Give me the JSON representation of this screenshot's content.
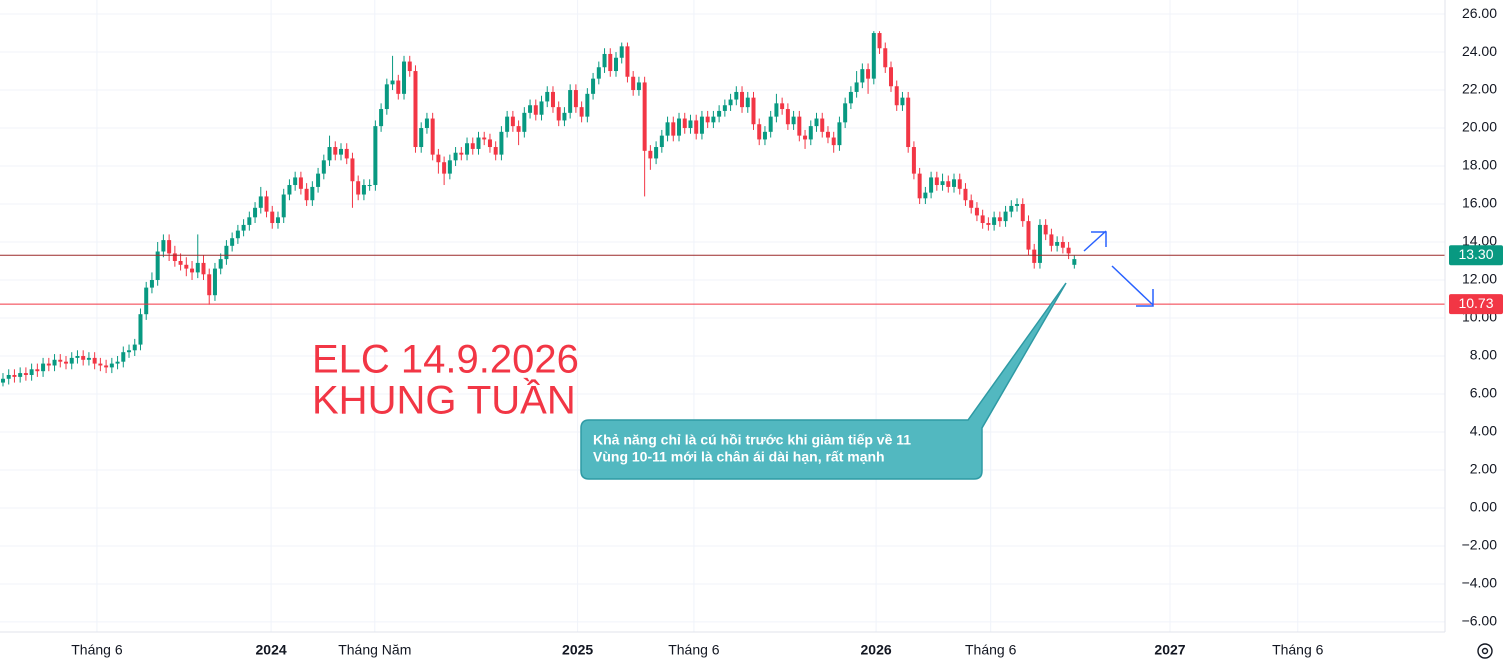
{
  "chart_data": {
    "type": "candlestick",
    "up_color": "#089981",
    "down_color": "#f23645",
    "candles": [
      [
        6.6,
        7.1,
        6.4,
        6.8
      ],
      [
        6.8,
        7.3,
        6.5,
        7.0
      ],
      [
        7.0,
        7.3,
        6.6,
        6.9
      ],
      [
        6.9,
        7.4,
        6.6,
        7.1
      ],
      [
        7.1,
        7.4,
        6.7,
        7.0
      ],
      [
        7.0,
        7.6,
        6.7,
        7.3
      ],
      [
        7.3,
        7.6,
        6.9,
        7.2
      ],
      [
        7.2,
        7.9,
        6.9,
        7.6
      ],
      [
        7.6,
        7.9,
        7.2,
        7.5
      ],
      [
        7.5,
        8.1,
        7.2,
        7.8
      ],
      [
        7.8,
        8.1,
        7.4,
        7.7
      ],
      [
        7.7,
        8.0,
        7.3,
        7.6
      ],
      [
        7.6,
        8.2,
        7.3,
        7.9
      ],
      [
        7.9,
        8.3,
        7.6,
        8.0
      ],
      [
        8.0,
        8.3,
        7.5,
        7.8
      ],
      [
        7.8,
        8.2,
        7.5,
        7.9
      ],
      [
        7.9,
        8.2,
        7.3,
        7.6
      ],
      [
        7.6,
        7.9,
        7.2,
        7.5
      ],
      [
        7.5,
        7.8,
        7.1,
        7.4
      ],
      [
        7.4,
        7.9,
        7.1,
        7.6
      ],
      [
        7.6,
        8.0,
        7.3,
        7.7
      ],
      [
        7.7,
        8.5,
        7.4,
        8.2
      ],
      [
        8.2,
        8.6,
        7.9,
        8.3
      ],
      [
        8.3,
        8.9,
        8.0,
        8.6
      ],
      [
        8.6,
        10.5,
        8.3,
        10.2
      ],
      [
        10.2,
        11.9,
        9.9,
        11.6
      ],
      [
        11.6,
        12.4,
        11.3,
        12.0
      ],
      [
        12.0,
        14.0,
        11.7,
        13.5
      ],
      [
        13.5,
        14.4,
        13.2,
        14.1
      ],
      [
        14.1,
        14.4,
        13.0,
        13.4
      ],
      [
        13.4,
        13.8,
        12.7,
        13.0
      ],
      [
        13.0,
        13.4,
        12.5,
        12.8
      ],
      [
        12.8,
        13.2,
        12.2,
        12.6
      ],
      [
        12.6,
        13.0,
        12.0,
        12.4
      ],
      [
        12.4,
        14.4,
        12.1,
        12.9
      ],
      [
        12.9,
        13.3,
        12.0,
        12.3
      ],
      [
        12.3,
        12.6,
        10.7,
        11.2
      ],
      [
        11.2,
        12.9,
        10.9,
        12.6
      ],
      [
        12.6,
        13.4,
        12.3,
        13.1
      ],
      [
        13.1,
        14.1,
        12.8,
        13.8
      ],
      [
        13.8,
        14.5,
        13.5,
        14.2
      ],
      [
        14.2,
        14.9,
        13.9,
        14.6
      ],
      [
        14.6,
        15.2,
        14.3,
        14.9
      ],
      [
        14.9,
        15.6,
        14.6,
        15.3
      ],
      [
        15.3,
        16.1,
        15.0,
        15.8
      ],
      [
        15.8,
        16.9,
        15.5,
        16.4
      ],
      [
        16.4,
        16.7,
        15.3,
        15.6
      ],
      [
        15.6,
        15.9,
        14.7,
        15.0
      ],
      [
        15.0,
        15.6,
        14.7,
        15.3
      ],
      [
        15.3,
        16.8,
        15.0,
        16.5
      ],
      [
        16.5,
        17.3,
        16.2,
        17.0
      ],
      [
        17.0,
        17.7,
        16.7,
        17.4
      ],
      [
        17.4,
        17.7,
        16.5,
        16.8
      ],
      [
        16.8,
        17.1,
        15.9,
        16.2
      ],
      [
        16.2,
        17.2,
        15.9,
        16.9
      ],
      [
        16.9,
        17.9,
        16.6,
        17.6
      ],
      [
        17.6,
        18.6,
        17.3,
        18.3
      ],
      [
        18.3,
        19.6,
        18.0,
        19.0
      ],
      [
        19.0,
        19.3,
        18.3,
        18.6
      ],
      [
        18.6,
        19.2,
        18.3,
        18.9
      ],
      [
        18.9,
        19.2,
        18.1,
        18.4
      ],
      [
        18.4,
        18.7,
        15.8,
        17.2
      ],
      [
        17.2,
        17.5,
        16.2,
        16.5
      ],
      [
        16.5,
        17.3,
        16.2,
        17.0
      ],
      [
        17.0,
        17.3,
        16.7,
        17.0
      ],
      [
        17.0,
        20.4,
        16.7,
        20.1
      ],
      [
        20.1,
        21.3,
        19.8,
        21.0
      ],
      [
        21.0,
        22.6,
        20.7,
        22.3
      ],
      [
        22.3,
        23.8,
        22.0,
        22.5
      ],
      [
        22.5,
        22.8,
        21.5,
        21.8
      ],
      [
        21.8,
        23.8,
        21.5,
        23.5
      ],
      [
        23.5,
        23.8,
        22.7,
        23.0
      ],
      [
        23.0,
        23.3,
        18.7,
        19.0
      ],
      [
        19.0,
        20.3,
        18.7,
        20.0
      ],
      [
        20.0,
        20.8,
        19.7,
        20.5
      ],
      [
        20.5,
        20.8,
        18.3,
        18.6
      ],
      [
        18.6,
        18.9,
        17.6,
        18.2
      ],
      [
        18.2,
        18.5,
        17.0,
        17.6
      ],
      [
        17.6,
        18.6,
        17.3,
        18.3
      ],
      [
        18.3,
        19.0,
        18.0,
        18.7
      ],
      [
        18.7,
        19.0,
        18.3,
        18.6
      ],
      [
        18.6,
        19.5,
        18.3,
        19.2
      ],
      [
        19.2,
        19.5,
        18.6,
        18.9
      ],
      [
        18.9,
        19.8,
        18.6,
        19.5
      ],
      [
        19.5,
        19.8,
        19.1,
        19.4
      ],
      [
        19.4,
        19.7,
        18.7,
        19.0
      ],
      [
        19.0,
        19.3,
        18.3,
        18.6
      ],
      [
        18.6,
        20.1,
        18.3,
        19.8
      ],
      [
        19.8,
        20.9,
        19.5,
        20.6
      ],
      [
        20.6,
        20.9,
        19.8,
        20.1
      ],
      [
        20.1,
        20.4,
        19.1,
        19.8
      ],
      [
        19.8,
        21.1,
        19.5,
        20.8
      ],
      [
        20.8,
        21.5,
        20.5,
        21.2
      ],
      [
        21.2,
        21.5,
        20.4,
        20.7
      ],
      [
        20.7,
        21.7,
        20.4,
        21.4
      ],
      [
        21.4,
        22.2,
        21.1,
        21.9
      ],
      [
        21.9,
        22.2,
        20.8,
        21.1
      ],
      [
        21.1,
        21.4,
        20.1,
        20.4
      ],
      [
        20.4,
        21.1,
        20.1,
        20.8
      ],
      [
        20.8,
        22.3,
        20.5,
        22.0
      ],
      [
        22.0,
        22.3,
        20.8,
        21.1
      ],
      [
        21.1,
        21.4,
        20.3,
        20.6
      ],
      [
        20.6,
        22.1,
        20.3,
        21.8
      ],
      [
        21.8,
        22.9,
        21.5,
        22.6
      ],
      [
        22.6,
        23.5,
        22.3,
        23.2
      ],
      [
        23.2,
        24.2,
        22.9,
        23.9
      ],
      [
        23.9,
        24.2,
        22.7,
        23.0
      ],
      [
        23.0,
        24.0,
        22.7,
        23.7
      ],
      [
        23.7,
        24.5,
        23.4,
        24.3
      ],
      [
        24.3,
        24.5,
        22.4,
        22.7
      ],
      [
        22.7,
        23.0,
        21.7,
        22.0
      ],
      [
        22.0,
        22.7,
        21.7,
        22.4
      ],
      [
        22.4,
        22.7,
        16.4,
        18.8
      ],
      [
        18.8,
        19.1,
        17.8,
        18.4
      ],
      [
        18.4,
        19.3,
        18.1,
        19.0
      ],
      [
        19.0,
        19.9,
        18.7,
        19.6
      ],
      [
        19.6,
        20.6,
        19.3,
        20.3
      ],
      [
        20.3,
        20.6,
        19.3,
        19.6
      ],
      [
        19.6,
        20.8,
        19.3,
        20.5
      ],
      [
        20.5,
        20.8,
        19.7,
        20.0
      ],
      [
        20.0,
        20.7,
        19.7,
        20.4
      ],
      [
        20.4,
        20.7,
        19.4,
        19.7
      ],
      [
        19.7,
        20.9,
        19.4,
        20.6
      ],
      [
        20.6,
        20.9,
        20.0,
        20.3
      ],
      [
        20.3,
        20.9,
        20.0,
        20.6
      ],
      [
        20.6,
        21.2,
        20.3,
        20.9
      ],
      [
        20.9,
        21.5,
        20.6,
        21.2
      ],
      [
        21.2,
        21.8,
        20.9,
        21.5
      ],
      [
        21.5,
        22.2,
        21.2,
        21.9
      ],
      [
        21.9,
        22.2,
        20.8,
        21.1
      ],
      [
        21.1,
        21.9,
        20.8,
        21.6
      ],
      [
        21.6,
        21.9,
        19.9,
        20.2
      ],
      [
        20.2,
        20.5,
        19.1,
        19.4
      ],
      [
        19.4,
        20.1,
        19.1,
        19.8
      ],
      [
        19.8,
        20.9,
        19.5,
        20.6
      ],
      [
        20.6,
        21.8,
        20.3,
        21.3
      ],
      [
        21.3,
        21.6,
        20.7,
        21.0
      ],
      [
        21.0,
        21.3,
        19.9,
        20.2
      ],
      [
        20.2,
        20.9,
        19.9,
        20.6
      ],
      [
        20.6,
        20.9,
        19.3,
        19.6
      ],
      [
        19.6,
        19.9,
        18.9,
        19.4
      ],
      [
        19.4,
        20.4,
        19.1,
        20.1
      ],
      [
        20.1,
        20.8,
        19.8,
        20.5
      ],
      [
        20.5,
        20.8,
        19.5,
        19.8
      ],
      [
        19.8,
        20.1,
        19.2,
        19.5
      ],
      [
        19.5,
        19.8,
        18.7,
        19.1
      ],
      [
        19.1,
        20.6,
        18.8,
        20.3
      ],
      [
        20.3,
        21.6,
        20.0,
        21.3
      ],
      [
        21.3,
        22.2,
        21.0,
        21.9
      ],
      [
        21.9,
        23.0,
        21.6,
        22.4
      ],
      [
        22.4,
        23.4,
        22.1,
        23.1
      ],
      [
        23.1,
        23.4,
        21.8,
        22.6
      ],
      [
        22.6,
        25.1,
        22.3,
        25.0
      ],
      [
        25.0,
        25.1,
        23.9,
        24.2
      ],
      [
        24.2,
        24.5,
        22.9,
        23.2
      ],
      [
        23.2,
        23.5,
        21.9,
        22.2
      ],
      [
        22.2,
        22.5,
        20.9,
        21.2
      ],
      [
        21.2,
        21.9,
        20.9,
        21.6
      ],
      [
        21.6,
        21.9,
        18.7,
        19.0
      ],
      [
        19.0,
        19.3,
        17.3,
        17.6
      ],
      [
        17.6,
        17.9,
        16.0,
        16.3
      ],
      [
        16.3,
        16.9,
        16.0,
        16.6
      ],
      [
        16.6,
        17.7,
        16.3,
        17.4
      ],
      [
        17.4,
        17.7,
        16.7,
        17.0
      ],
      [
        17.0,
        17.6,
        16.7,
        17.2
      ],
      [
        17.2,
        17.5,
        16.6,
        16.9
      ],
      [
        16.9,
        17.6,
        16.6,
        17.3
      ],
      [
        17.3,
        17.6,
        16.5,
        16.8
      ],
      [
        16.8,
        17.1,
        15.9,
        16.2
      ],
      [
        16.2,
        16.5,
        15.5,
        15.8
      ],
      [
        15.8,
        16.1,
        15.1,
        15.4
      ],
      [
        15.4,
        15.7,
        14.7,
        15.0
      ],
      [
        15.0,
        15.3,
        14.6,
        14.9
      ],
      [
        14.9,
        15.6,
        14.6,
        15.3
      ],
      [
        15.3,
        15.6,
        14.8,
        15.1
      ],
      [
        15.1,
        15.9,
        14.8,
        15.6
      ],
      [
        15.6,
        16.2,
        15.3,
        15.9
      ],
      [
        15.9,
        16.3,
        15.6,
        16.0
      ],
      [
        16.0,
        16.3,
        14.8,
        15.1
      ],
      [
        15.1,
        15.4,
        13.3,
        13.6
      ],
      [
        13.6,
        13.9,
        12.6,
        12.9
      ],
      [
        12.9,
        15.2,
        12.6,
        14.9
      ],
      [
        14.9,
        15.2,
        14.1,
        14.4
      ],
      [
        14.4,
        14.7,
        13.5,
        13.8
      ],
      [
        13.8,
        14.3,
        13.5,
        14.0
      ],
      [
        14.0,
        14.3,
        13.4,
        13.7
      ],
      [
        13.7,
        14.0,
        13.1,
        13.4
      ],
      [
        12.8,
        13.3,
        12.6,
        13.1
      ]
    ],
    "xlim": [
      -0.52,
      251.7
    ],
    "xticks": [
      {
        "value": 16.4,
        "label": "Tháng 6"
      },
      {
        "value": 46.8,
        "label": "2024"
      },
      {
        "value": 64.9,
        "label": "Tháng Năm"
      },
      {
        "value": 100.3,
        "label": "2025"
      },
      {
        "value": 120.6,
        "label": "Tháng 6"
      },
      {
        "value": 152.4,
        "label": "2026"
      },
      {
        "value": 172.4,
        "label": "Tháng 6"
      },
      {
        "value": 203.7,
        "label": "2027"
      },
      {
        "value": 226.0,
        "label": "Tháng 6"
      }
    ],
    "ylim": [
      -6.53,
      26.74
    ],
    "yticks": [
      {
        "value": 26,
        "label": "26.00"
      },
      {
        "value": 24,
        "label": "24.00"
      },
      {
        "value": 22,
        "label": "22.00"
      },
      {
        "value": 20,
        "label": "20.00"
      },
      {
        "value": 18,
        "label": "18.00"
      },
      {
        "value": 16,
        "label": "16.00"
      },
      {
        "value": 14,
        "label": "14.00"
      },
      {
        "value": 12,
        "label": "12.00"
      },
      {
        "value": 10,
        "label": "10.00"
      },
      {
        "value": 8,
        "label": "8.00"
      },
      {
        "value": 6,
        "label": "6.00"
      },
      {
        "value": 4,
        "label": "4.00"
      },
      {
        "value": 2,
        "label": "2.00"
      },
      {
        "value": 0,
        "label": "0.00"
      },
      {
        "value": -2,
        "label": "−2.00"
      },
      {
        "value": -4,
        "label": "−4.00"
      },
      {
        "value": -6,
        "label": "−6.00"
      }
    ],
    "grid": true,
    "price_lines": [
      {
        "value": 13.3,
        "label": "13.30",
        "line_color": "#9c2a2a",
        "label_color": "#089981"
      },
      {
        "value": 10.73,
        "label": "10.73",
        "line_color": "#f23645",
        "label_color": "#f23645"
      }
    ],
    "title_lines": [
      "ELC 14.9.2026",
      "KHUNG TUẦN"
    ],
    "callout_lines": [
      "Khả năng chỉ là cú hồi trước khi giảm tiếp về 11",
      "Vùng 10-11 mới là chân ái dài hạn, rất mạnh"
    ]
  }
}
